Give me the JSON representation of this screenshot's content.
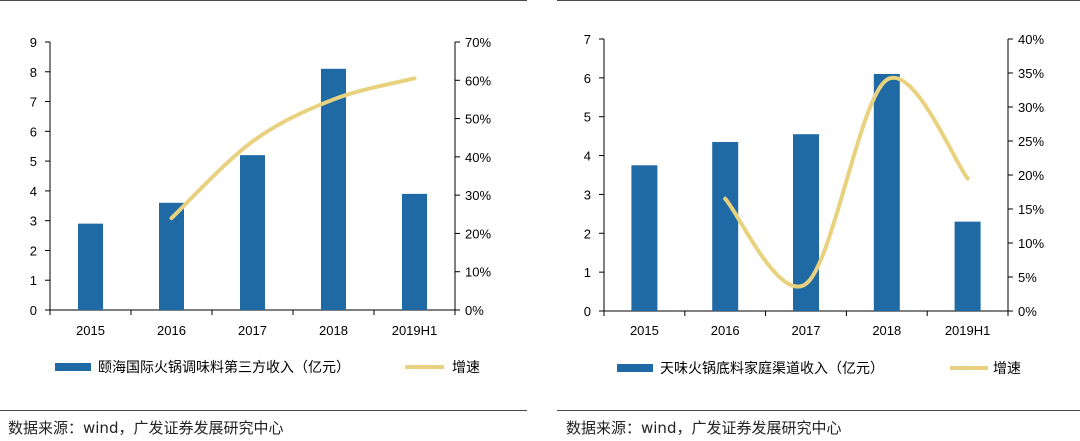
{
  "chart_data": [
    {
      "type": "bar",
      "categories": [
        "2015",
        "2016",
        "2017",
        "2018",
        "2019H1"
      ],
      "series": [
        {
          "name": "颐海国际火锅调味料第三方收入（亿元）",
          "kind": "bar",
          "axis": "left",
          "values": [
            2.9,
            3.6,
            5.2,
            8.1,
            3.9
          ]
        },
        {
          "name": "增速",
          "kind": "line",
          "axis": "right",
          "values": [
            null,
            0.24,
            0.44,
            0.55,
            0.605
          ]
        }
      ],
      "left_axis": {
        "ylim": [
          0,
          9
        ],
        "ticks": [
          "0",
          "1",
          "2",
          "3",
          "4",
          "5",
          "6",
          "7",
          "8",
          "9"
        ]
      },
      "right_axis": {
        "ylim": [
          0,
          0.7
        ],
        "ticks": [
          "0%",
          "10%",
          "20%",
          "30%",
          "40%",
          "50%",
          "60%",
          "70%"
        ]
      },
      "legend_position": "bottom",
      "colors": {
        "bar": "#1f6aa5",
        "line": "#e9d27f"
      }
    },
    {
      "type": "bar",
      "categories": [
        "2015",
        "2016",
        "2017",
        "2018",
        "2019H1"
      ],
      "series": [
        {
          "name": "天味火锅底料家庭渠道收入（亿元）",
          "kind": "bar",
          "axis": "left",
          "values": [
            3.75,
            4.35,
            4.55,
            6.1,
            2.3
          ]
        },
        {
          "name": "增速",
          "kind": "line",
          "axis": "right",
          "values": [
            null,
            0.165,
            0.04,
            0.34,
            0.195
          ]
        }
      ],
      "left_axis": {
        "ylim": [
          0,
          7
        ],
        "ticks": [
          "0",
          "1",
          "2",
          "3",
          "4",
          "5",
          "6",
          "7"
        ]
      },
      "right_axis": {
        "ylim": [
          0,
          0.4
        ],
        "ticks": [
          "0%",
          "5%",
          "10%",
          "15%",
          "20%",
          "25%",
          "30%",
          "35%",
          "40%"
        ]
      },
      "legend_position": "bottom",
      "colors": {
        "bar": "#1f6aa5",
        "line": "#e9d27f"
      }
    }
  ],
  "sources": [
    "数据来源：wind，广发证券发展研究中心",
    "数据来源：wind，广发证券发展研究中心"
  ]
}
